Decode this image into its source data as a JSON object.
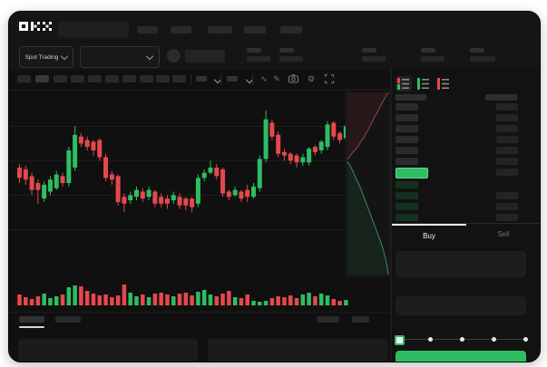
{
  "app": {
    "title": "OKX"
  },
  "colors": {
    "up": "#2ebd63",
    "down": "#e5484d",
    "buy_button": "#2ebd63",
    "price_highlight": "#2ebd63",
    "bid_row_bar": "#16301f",
    "ask_row_bar": "#2b2b2b",
    "neutral_bar": "#242424",
    "depth_ask_line": "#8a4a4e",
    "depth_bid_line": "#3a8a6e",
    "grid": "#1d1d1d"
  },
  "header": {
    "market_selector": {
      "label": "Spot Trading"
    }
  },
  "toolbar": {
    "icon_glyphs": {
      "wave": "∿",
      "pencil": "✎",
      "gear": "⚙"
    }
  },
  "orderbook": {
    "modes": [
      "combined-book",
      "bids-only",
      "asks-only"
    ],
    "asks_count": 6,
    "bids_count": 4,
    "bids_right_bars": [
      false,
      true,
      true,
      true
    ]
  },
  "trade_panel": {
    "tabs": [
      {
        "label": "Buy",
        "active": true
      },
      {
        "label": "Sell",
        "active": false
      }
    ],
    "slider_positions": 5
  },
  "chart_data": {
    "type": "candlestick",
    "title": "",
    "x_unit": "time-interval-index",
    "y_unit": "price (relative scale)",
    "price_range": [
      20,
      100
    ],
    "grid": true,
    "candles": [
      [
        59,
        61,
        50,
        53
      ],
      [
        58,
        60,
        49,
        52
      ],
      [
        54,
        56,
        43,
        46
      ],
      [
        50,
        52,
        38,
        46
      ],
      [
        41,
        51,
        39,
        49
      ],
      [
        45,
        54,
        43,
        52
      ],
      [
        47,
        57,
        46,
        55
      ],
      [
        54,
        56,
        48,
        50
      ],
      [
        50,
        71,
        48,
        69
      ],
      [
        59,
        83,
        57,
        78
      ],
      [
        77,
        79,
        71,
        73
      ],
      [
        75,
        77,
        69,
        71
      ],
      [
        74,
        75,
        66,
        69
      ],
      [
        75,
        76,
        63,
        65
      ],
      [
        65,
        67,
        51,
        53
      ],
      [
        55,
        57,
        49,
        52
      ],
      [
        54,
        55,
        37,
        39
      ],
      [
        42,
        44,
        33,
        38
      ],
      [
        40,
        45,
        38,
        43
      ],
      [
        42,
        48,
        40,
        46
      ],
      [
        45,
        47,
        39,
        41
      ],
      [
        42,
        48,
        40,
        46
      ],
      [
        45,
        46,
        36,
        38
      ],
      [
        42,
        44,
        36,
        38
      ],
      [
        41,
        43,
        35,
        38
      ],
      [
        40,
        45,
        38,
        43
      ],
      [
        42,
        44,
        35,
        37
      ],
      [
        41,
        42,
        34,
        37
      ],
      [
        41,
        42,
        33,
        36
      ],
      [
        38,
        55,
        36,
        53
      ],
      [
        53,
        58,
        51,
        56
      ],
      [
        56,
        63,
        55,
        59
      ],
      [
        59,
        61,
        52,
        54
      ],
      [
        58,
        59,
        42,
        44
      ],
      [
        45,
        46,
        40,
        42
      ],
      [
        43,
        48,
        42,
        46
      ],
      [
        45,
        46,
        39,
        41
      ],
      [
        46,
        49,
        39,
        42
      ],
      [
        42,
        50,
        41,
        48
      ],
      [
        47,
        66,
        45,
        64
      ],
      [
        64,
        92,
        62,
        87
      ],
      [
        85,
        87,
        75,
        77
      ],
      [
        78,
        80,
        65,
        67
      ],
      [
        68,
        70,
        63,
        66
      ],
      [
        67,
        68,
        61,
        63
      ],
      [
        66,
        67,
        59,
        62
      ],
      [
        62,
        67,
        60,
        65
      ],
      [
        62,
        71,
        60,
        70
      ],
      [
        71,
        72,
        66,
        68
      ],
      [
        69,
        75,
        67,
        74
      ],
      [
        71,
        86,
        69,
        84
      ],
      [
        85,
        86,
        75,
        77
      ],
      [
        79,
        80,
        73,
        75
      ],
      [
        76,
        85,
        74,
        83
      ]
    ],
    "volumes": [
      12,
      9,
      7,
      10,
      13,
      8,
      10,
      12,
      20,
      22,
      21,
      16,
      13,
      11,
      12,
      9,
      11,
      23,
      14,
      10,
      12,
      9,
      13,
      14,
      12,
      10,
      13,
      14,
      11,
      15,
      17,
      12,
      10,
      13,
      16,
      9,
      8,
      12,
      5,
      4,
      5,
      8,
      10,
      9,
      11,
      8,
      12,
      14,
      10,
      13,
      11,
      7,
      5,
      6
    ]
  },
  "depth": {
    "asks": [
      [
        1,
        77
      ],
      [
        4,
        73
      ],
      [
        7,
        69
      ],
      [
        10,
        66
      ],
      [
        13,
        62
      ],
      [
        16,
        57
      ],
      [
        19,
        53
      ],
      [
        22,
        47
      ],
      [
        25,
        42
      ],
      [
        28,
        36
      ],
      [
        31,
        30
      ],
      [
        34,
        25
      ],
      [
        37,
        19
      ],
      [
        40,
        13
      ],
      [
        43,
        8
      ],
      [
        46,
        3
      ]
    ],
    "bids": [
      [
        1,
        79
      ],
      [
        4,
        84
      ],
      [
        7,
        90
      ],
      [
        10,
        97
      ],
      [
        13,
        103
      ],
      [
        16,
        110
      ],
      [
        19,
        118
      ],
      [
        22,
        126
      ],
      [
        25,
        134
      ],
      [
        28,
        142
      ],
      [
        31,
        150
      ],
      [
        34,
        158
      ],
      [
        37,
        166
      ],
      [
        40,
        175
      ],
      [
        43,
        186
      ],
      [
        45,
        196
      ],
      [
        46,
        204
      ]
    ]
  }
}
